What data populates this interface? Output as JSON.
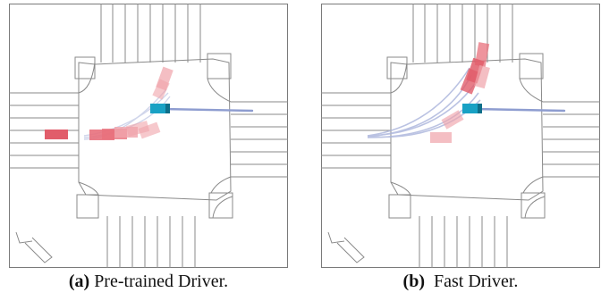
{
  "figure": {
    "panels": [
      {
        "tag": "(a)",
        "caption": "Pre-trained Driver."
      },
      {
        "tag": "(b)",
        "caption": "Fast Driver."
      }
    ]
  },
  "colors": {
    "road_lines": "#8a8a8a",
    "ego_vehicle": "#19a1c4",
    "ego_trail": "#8e9dd0",
    "other_vehicle": "#e15d6a",
    "other_vehicle_faded": "#f0a3aa",
    "predicted_paths": "#c9d0e8"
  }
}
